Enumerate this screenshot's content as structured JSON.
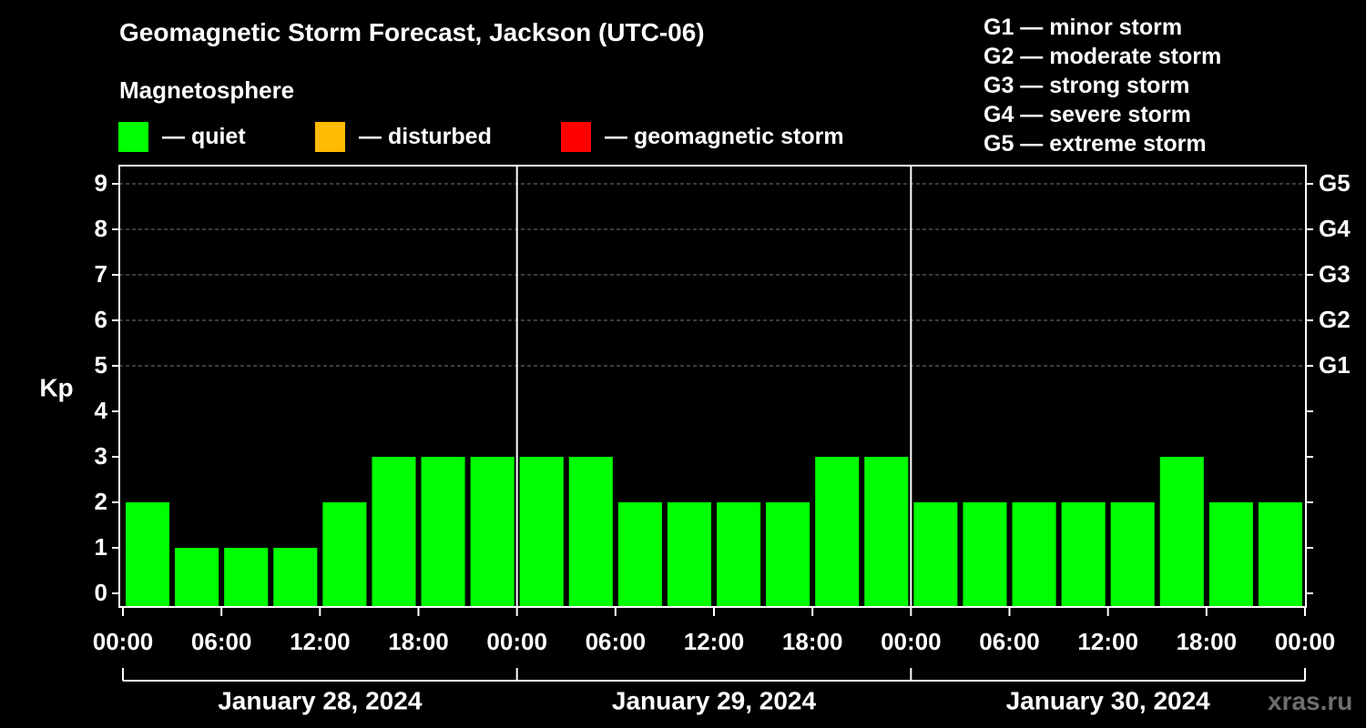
{
  "title": "Geomagnetic Storm Forecast, Jackson (UTC-06)",
  "magnetosphere": {
    "heading": "Magnetosphere",
    "legend": [
      {
        "label": "— quiet",
        "color": "#00ff00"
      },
      {
        "label": "— disturbed",
        "color": "#ffbb00"
      },
      {
        "label": "— geomagnetic storm",
        "color": "#ff0000"
      }
    ]
  },
  "g_scale": [
    "G1 — minor storm",
    "G2 — moderate storm",
    "G3 — strong storm",
    "G4 — severe storm",
    "G5 — extreme storm"
  ],
  "watermark": "xras.ru",
  "chart_data": {
    "type": "bar",
    "ylabel": "Kp",
    "ylim": [
      0,
      9
    ],
    "yticks": [
      "0",
      "1",
      "2",
      "3",
      "4",
      "5",
      "6",
      "7",
      "8",
      "9"
    ],
    "right_axis_labels": [
      {
        "kp": 5,
        "label": "G1"
      },
      {
        "kp": 6,
        "label": "G2"
      },
      {
        "kp": 7,
        "label": "G3"
      },
      {
        "kp": 8,
        "label": "G4"
      },
      {
        "kp": 9,
        "label": "G5"
      }
    ],
    "grid": "horizontal dashed lines at Kp 5-9",
    "xtick_labels": [
      "00:00",
      "06:00",
      "12:00",
      "18:00",
      "00:00",
      "06:00",
      "12:00",
      "18:00",
      "00:00",
      "06:00",
      "12:00",
      "18:00",
      "00:00"
    ],
    "days": [
      "January 28, 2024",
      "January 29, 2024",
      "January 30, 2024"
    ],
    "interval_hours": 3,
    "values": [
      2,
      1,
      1,
      1,
      2,
      3,
      3,
      3,
      3,
      3,
      2,
      2,
      2,
      2,
      3,
      3,
      2,
      2,
      2,
      2,
      2,
      3,
      2,
      2
    ],
    "bar_color": "#00ff00"
  }
}
